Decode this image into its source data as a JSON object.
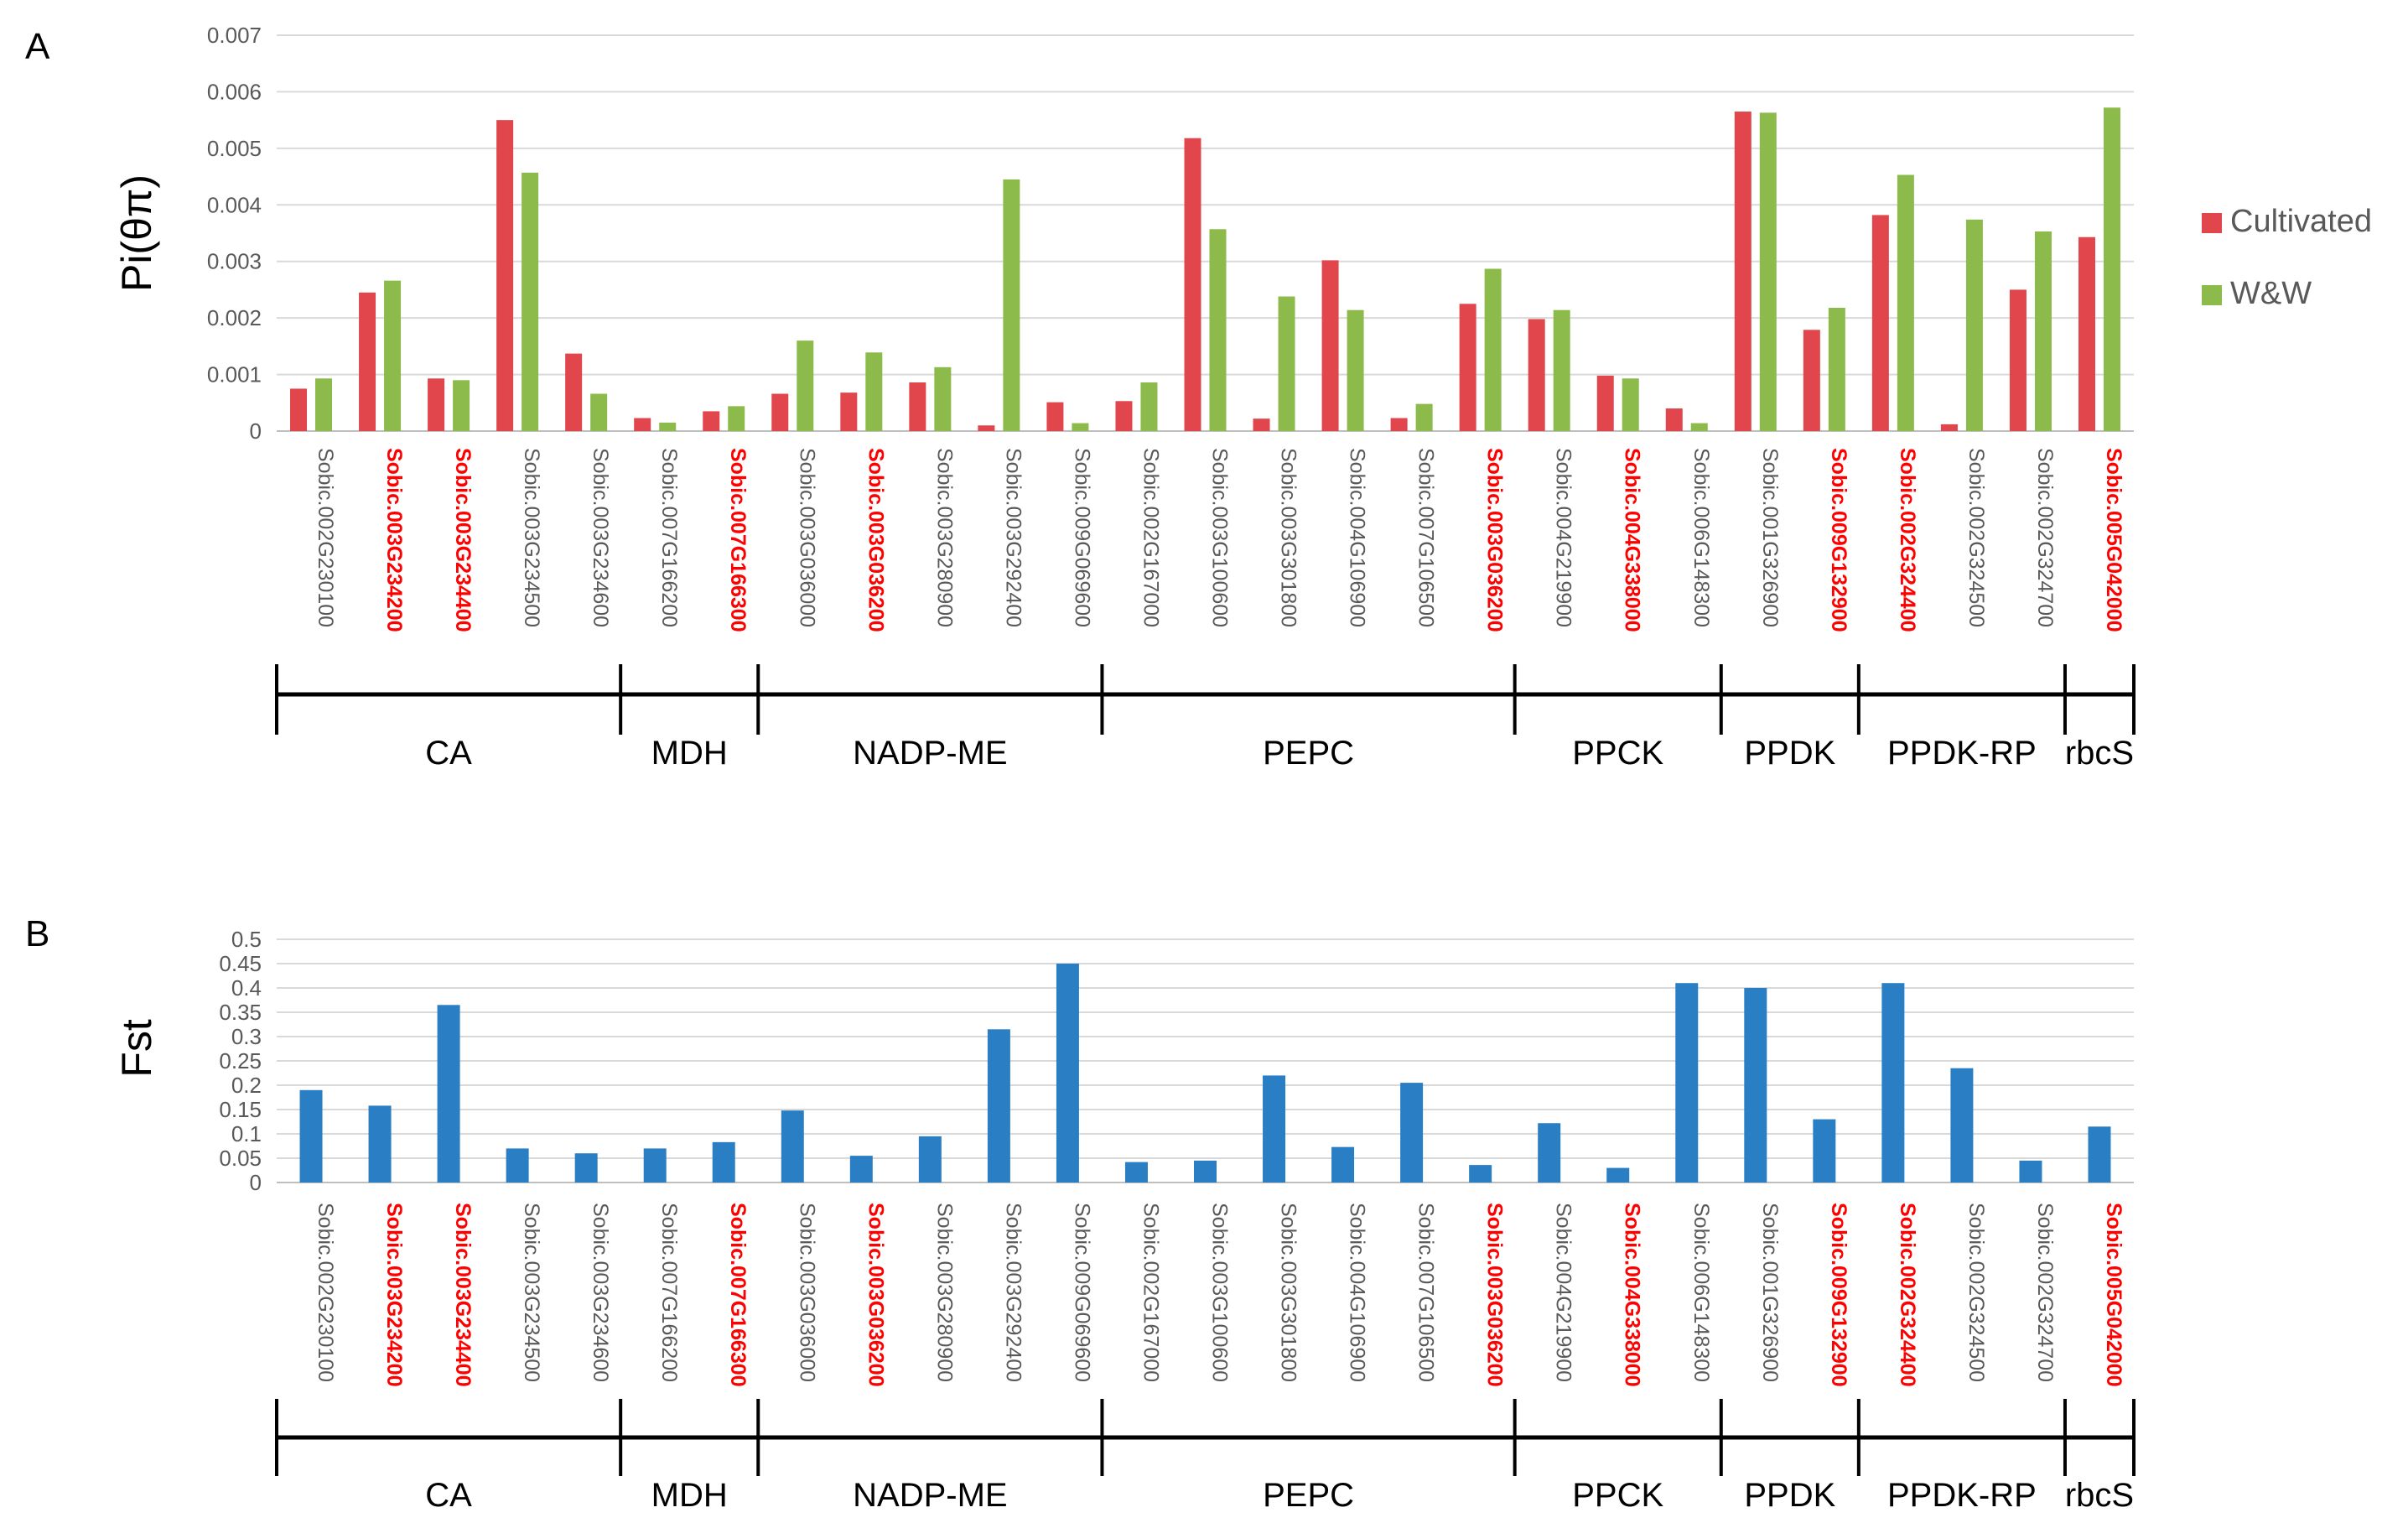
{
  "genes": [
    {
      "id": "Sobic.002G230100",
      "highlight": false
    },
    {
      "id": "Sobic.003G234200",
      "highlight": true
    },
    {
      "id": "Sobic.003G234400",
      "highlight": true
    },
    {
      "id": "Sobic.003G234500",
      "highlight": false
    },
    {
      "id": "Sobic.003G234600",
      "highlight": false
    },
    {
      "id": "Sobic.007G166200",
      "highlight": false
    },
    {
      "id": "Sobic.007G166300",
      "highlight": true
    },
    {
      "id": "Sobic.003G036000",
      "highlight": false
    },
    {
      "id": "Sobic.003G036200",
      "highlight": true
    },
    {
      "id": "Sobic.003G280900",
      "highlight": false
    },
    {
      "id": "Sobic.003G292400",
      "highlight": false
    },
    {
      "id": "Sobic.009G069600",
      "highlight": false
    },
    {
      "id": "Sobic.002G167000",
      "highlight": false
    },
    {
      "id": "Sobic.003G100600",
      "highlight": false
    },
    {
      "id": "Sobic.003G301800",
      "highlight": false
    },
    {
      "id": "Sobic.004G106900",
      "highlight": false
    },
    {
      "id": "Sobic.007G106500",
      "highlight": false
    },
    {
      "id": "Sobic.003G036200",
      "highlight": true
    },
    {
      "id": "Sobic.004G219900",
      "highlight": false
    },
    {
      "id": "Sobic.004G338000",
      "highlight": true
    },
    {
      "id": "Sobic.006G148300",
      "highlight": false
    },
    {
      "id": "Sobic.001G326900",
      "highlight": false
    },
    {
      "id": "Sobic.009G132900",
      "highlight": true
    },
    {
      "id": "Sobic.002G324400",
      "highlight": true
    },
    {
      "id": "Sobic.002G324500",
      "highlight": false
    },
    {
      "id": "Sobic.002G324700",
      "highlight": false
    },
    {
      "id": "Sobic.005G042000",
      "highlight": true
    }
  ],
  "groups": [
    {
      "name": "CA",
      "count": 5
    },
    {
      "name": "MDH",
      "count": 2
    },
    {
      "name": "NADP-ME",
      "count": 5
    },
    {
      "name": "PEPC",
      "count": 6
    },
    {
      "name": "PPCK",
      "count": 3
    },
    {
      "name": "PPDK",
      "count": 2
    },
    {
      "name": "PPDK-RP",
      "count": 3
    },
    {
      "name": "rbcS",
      "count": 1
    }
  ],
  "colors": {
    "cultivated": "#e0464b",
    "ww": "#8cba4b",
    "fst": "#2a7fc4",
    "highlight": "#ff0000",
    "label": "#595959",
    "grid": "#d9d9d9"
  },
  "chart_data": [
    {
      "panel_label": "A",
      "type": "bar",
      "ylabel": "Pi(θπ)",
      "ylim": [
        0,
        0.007
      ],
      "yticks": [
        "0",
        "0.001",
        "0.002",
        "0.003",
        "0.004",
        "0.005",
        "0.006",
        "0.007"
      ],
      "legend_position": "right",
      "series": [
        {
          "name": "Cultivated",
          "color_key": "cultivated",
          "values": [
            0.00075,
            0.00245,
            0.00093,
            0.0055,
            0.00137,
            0.00023,
            0.00035,
            0.00066,
            0.00068,
            0.00086,
            0.0001,
            0.00051,
            0.00053,
            0.00518,
            0.00022,
            0.00302,
            0.00023,
            0.00225,
            0.00198,
            0.00098,
            0.0004,
            0.00565,
            0.00179,
            0.00382,
            0.00012,
            0.0025,
            0.00343
          ]
        },
        {
          "name": "W&W",
          "color_key": "ww",
          "values": [
            0.00093,
            0.00266,
            0.0009,
            0.00457,
            0.00066,
            0.00015,
            0.00044,
            0.0016,
            0.00139,
            0.00113,
            0.00445,
            0.00014,
            0.00086,
            0.00357,
            0.00238,
            0.00214,
            0.00048,
            0.00287,
            0.00214,
            0.00093,
            0.00014,
            0.00563,
            0.00218,
            0.00453,
            0.00374,
            0.00353,
            0.00572
          ]
        }
      ]
    },
    {
      "panel_label": "B",
      "type": "bar",
      "ylabel": "Fst",
      "ylim": [
        0,
        0.5
      ],
      "yticks": [
        "0",
        "0.05",
        "0.1",
        "0.15",
        "0.2",
        "0.25",
        "0.3",
        "0.35",
        "0.4",
        "0.45",
        "0.5"
      ],
      "series": [
        {
          "name": "Fst",
          "color_key": "fst",
          "values": [
            0.19,
            0.158,
            0.365,
            0.07,
            0.06,
            0.07,
            0.083,
            0.148,
            0.055,
            0.095,
            0.315,
            0.45,
            0.042,
            0.045,
            0.22,
            0.073,
            0.205,
            0.036,
            0.122,
            0.03,
            0.41,
            0.4,
            0.13,
            0.41,
            0.235,
            0.045,
            0.115
          ]
        }
      ]
    }
  ]
}
